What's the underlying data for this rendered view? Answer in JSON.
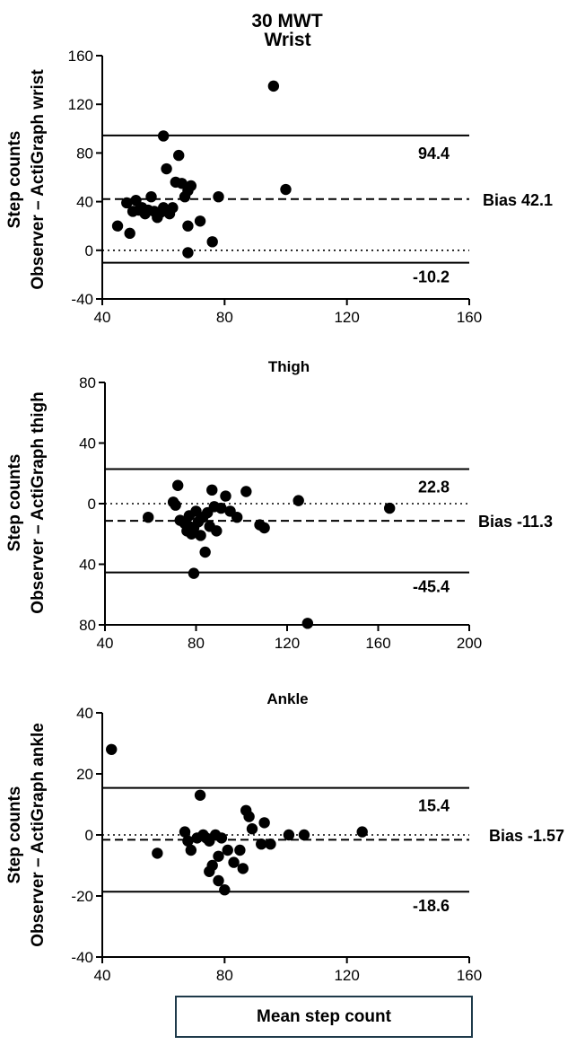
{
  "figure_title": "30 MWT",
  "x_axis_label": "Mean step count",
  "chart_data": [
    {
      "type": "scatter",
      "title": "Wrist",
      "ylabel_line1": "Step counts",
      "ylabel_line2": "Observer – ActiGraph wrist",
      "xlim": [
        40,
        160
      ],
      "ylim": [
        -40,
        160
      ],
      "xticks": [
        "40",
        "80",
        "120",
        "160"
      ],
      "yticks": [
        "-40",
        "0",
        "40",
        "80",
        "120",
        "160"
      ],
      "bias": 42.1,
      "bias_label": "Bias 42.1",
      "upper_loa": 94.4,
      "upper_loa_label": "94.4",
      "lower_loa": -10.2,
      "lower_loa_label": "-10.2",
      "points": [
        [
          45,
          20
        ],
        [
          48,
          39
        ],
        [
          49,
          14
        ],
        [
          50,
          32
        ],
        [
          51,
          41
        ],
        [
          52,
          33
        ],
        [
          53,
          35
        ],
        [
          54,
          30
        ],
        [
          55,
          33
        ],
        [
          56,
          44
        ],
        [
          57,
          32
        ],
        [
          58,
          27
        ],
        [
          59,
          31
        ],
        [
          60,
          94
        ],
        [
          60,
          35
        ],
        [
          61,
          67
        ],
        [
          62,
          30
        ],
        [
          63,
          35
        ],
        [
          64,
          56
        ],
        [
          65,
          78
        ],
        [
          66,
          55
        ],
        [
          67,
          44
        ],
        [
          68,
          49
        ],
        [
          68,
          20
        ],
        [
          68,
          -2
        ],
        [
          69,
          53
        ],
        [
          72,
          24
        ],
        [
          76,
          7
        ],
        [
          78,
          44
        ],
        [
          96,
          135
        ],
        [
          100,
          50
        ]
      ]
    },
    {
      "type": "scatter",
      "title": "Thigh",
      "ylabel_line1": "Step counts",
      "ylabel_line2": "Observer – ActiGraph thigh",
      "xlim": [
        40,
        200
      ],
      "ylim": [
        -80,
        80
      ],
      "xticks": [
        "40",
        "80",
        "120",
        "160",
        "200"
      ],
      "yticks": [
        "80",
        "40",
        "0",
        "40",
        "80"
      ],
      "bias": -11.3,
      "bias_label": "Bias -11.3",
      "upper_loa": 22.8,
      "upper_loa_label": "22.8",
      "lower_loa": -45.4,
      "lower_loa_label": "-45.4",
      "points": [
        [
          59,
          -9
        ],
        [
          70,
          1
        ],
        [
          71,
          -1
        ],
        [
          72,
          12
        ],
        [
          73,
          -11
        ],
        [
          75,
          -13
        ],
        [
          76,
          -18
        ],
        [
          77,
          -8
        ],
        [
          77,
          -15
        ],
        [
          78,
          -20
        ],
        [
          79,
          -16
        ],
        [
          79,
          -46
        ],
        [
          80,
          -5
        ],
        [
          81,
          -12
        ],
        [
          82,
          -21
        ],
        [
          83,
          -9
        ],
        [
          84,
          -32
        ],
        [
          85,
          -6
        ],
        [
          86,
          -15
        ],
        [
          87,
          9
        ],
        [
          88,
          -2
        ],
        [
          89,
          -18
        ],
        [
          91,
          -3
        ],
        [
          93,
          5
        ],
        [
          95,
          -5
        ],
        [
          98,
          -9
        ],
        [
          102,
          8
        ],
        [
          108,
          -14
        ],
        [
          110,
          -16
        ],
        [
          125,
          2
        ],
        [
          129,
          -79
        ],
        [
          165,
          -3
        ]
      ]
    },
    {
      "type": "scatter",
      "title": "Ankle",
      "ylabel_line1": "Step counts",
      "ylabel_line2": "Observer – ActiGraph ankle",
      "xlim": [
        40,
        160
      ],
      "ylim": [
        -40,
        40
      ],
      "xticks": [
        "40",
        "80",
        "120",
        "160"
      ],
      "yticks": [
        "-40",
        "-20",
        "0",
        "20",
        "40"
      ],
      "bias": -1.57,
      "bias_label": "Bias -1.57",
      "upper_loa": 15.4,
      "upper_loa_label": "15.4",
      "lower_loa": -18.6,
      "lower_loa_label": "-18.6",
      "points": [
        [
          43,
          28
        ],
        [
          58,
          -6
        ],
        [
          67,
          1
        ],
        [
          68,
          -2
        ],
        [
          69,
          -5
        ],
        [
          71,
          -1
        ],
        [
          72,
          13
        ],
        [
          73,
          0
        ],
        [
          74,
          -1
        ],
        [
          75,
          -12
        ],
        [
          75,
          -2
        ],
        [
          76,
          -10
        ],
        [
          77,
          0
        ],
        [
          78,
          -7
        ],
        [
          78,
          -15
        ],
        [
          79,
          -1
        ],
        [
          80,
          -18
        ],
        [
          81,
          -5
        ],
        [
          83,
          -9
        ],
        [
          85,
          -5
        ],
        [
          86,
          -11
        ],
        [
          87,
          8
        ],
        [
          88,
          6
        ],
        [
          89,
          2
        ],
        [
          92,
          -3
        ],
        [
          93,
          4
        ],
        [
          95,
          -3
        ],
        [
          101,
          0
        ],
        [
          106,
          0
        ],
        [
          125,
          1
        ]
      ]
    }
  ]
}
